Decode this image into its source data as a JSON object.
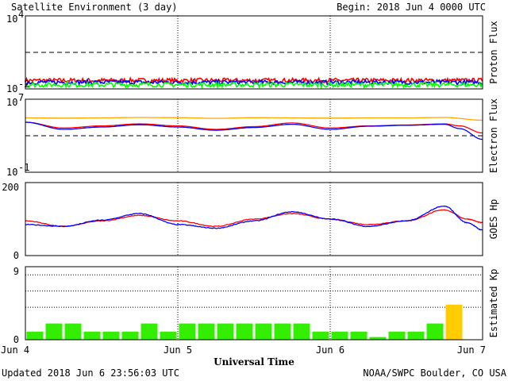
{
  "header": {
    "title": "Satellite Environment (3 day)",
    "begin": "Begin:  2018 Jun 4 0000 UTC"
  },
  "footer": {
    "updated": "Updated 2018 Jun  6 23:56:03 UTC",
    "credit": "NOAA/SWPC Boulder, CO USA",
    "xlabel": "Universal Time"
  },
  "x_ticks": [
    "Jun 4",
    "Jun 5",
    "Jun 6",
    "Jun 7"
  ],
  "chart_data": [
    {
      "type": "line",
      "id": "proton",
      "ylabel": "Proton Flux",
      "yscale": "log",
      "ylim": [
        0.01,
        10000
      ],
      "ytick_labels": [
        {
          "base": "10",
          "exp": "4"
        },
        {
          "base": "10",
          "exp": "-2"
        }
      ],
      "threshold": 10,
      "x_days": [
        0,
        3
      ],
      "series": [
        {
          "color": "#ff0000",
          "base": 0.05,
          "noise": 0.35
        },
        {
          "color": "#0000ff",
          "base": 0.035,
          "noise": 0.35
        },
        {
          "color": "#00ff00",
          "base": 0.022,
          "noise": 0.4
        }
      ]
    },
    {
      "type": "line",
      "id": "electron",
      "ylabel": "Electron Flux",
      "yscale": "log",
      "ylim": [
        0.1,
        10000000
      ],
      "ytick_labels": [
        {
          "base": "10",
          "exp": "7"
        },
        {
          "base": "10",
          "exp": "-1"
        }
      ],
      "threshold": 1000,
      "series": [
        {
          "color": "#ffa500",
          "x": [
            0,
            0.25,
            0.5,
            0.75,
            1.0,
            1.25,
            1.5,
            1.75,
            2.0,
            2.25,
            2.5,
            2.75,
            3.0
          ],
          "y": [
            90000,
            85000,
            90000,
            100000,
            95000,
            80000,
            95000,
            90000,
            85000,
            90000,
            90000,
            100000,
            50000
          ]
        },
        {
          "color": "#ff0000",
          "x": [
            0,
            0.25,
            0.5,
            0.75,
            1.0,
            1.25,
            1.5,
            1.75,
            2.0,
            2.25,
            2.5,
            2.75,
            2.85,
            3.0
          ],
          "y": [
            30000,
            7000,
            12000,
            20000,
            12000,
            5000,
            10000,
            25000,
            7000,
            12000,
            15000,
            20000,
            12000,
            2000
          ]
        },
        {
          "color": "#0000ff",
          "x": [
            0,
            0.25,
            0.5,
            0.75,
            1.0,
            1.25,
            1.5,
            1.75,
            2.0,
            2.25,
            2.5,
            2.75,
            2.85,
            3.0
          ],
          "y": [
            30000,
            5000,
            9000,
            16000,
            9000,
            4000,
            8000,
            18000,
            5000,
            11000,
            14000,
            18000,
            6000,
            400
          ]
        }
      ]
    },
    {
      "type": "line",
      "id": "hp",
      "ylabel": "GOES Hp",
      "yscale": "linear",
      "ylim": [
        0,
        200
      ],
      "ytick_labels": [
        "200",
        "0"
      ],
      "series": [
        {
          "color": "#ff0000",
          "x": [
            0,
            0.25,
            0.5,
            0.75,
            1.0,
            1.25,
            1.5,
            1.75,
            2.0,
            2.25,
            2.5,
            2.75,
            2.9,
            3.0
          ],
          "y": [
            95,
            80,
            95,
            110,
            95,
            80,
            100,
            115,
            100,
            85,
            95,
            125,
            100,
            90
          ]
        },
        {
          "color": "#0000ff",
          "x": [
            0,
            0.25,
            0.5,
            0.75,
            1.0,
            1.25,
            1.5,
            1.75,
            2.0,
            2.25,
            2.5,
            2.75,
            2.9,
            3.0
          ],
          "y": [
            85,
            80,
            97,
            115,
            85,
            75,
            95,
            120,
            100,
            80,
            95,
            135,
            90,
            70
          ]
        }
      ]
    },
    {
      "type": "bar",
      "id": "kp",
      "ylabel": "Estimated Kp",
      "ylim": [
        0,
        9
      ],
      "ytick_labels": [
        "9",
        "0"
      ],
      "grid_y": [
        4,
        6,
        8
      ],
      "values": [
        1.0,
        2.0,
        2.0,
        1.0,
        1.0,
        1.0,
        2.0,
        1.0,
        2.0,
        2.0,
        2.0,
        2.0,
        2.0,
        2.0,
        2.0,
        1.0,
        1.0,
        1.0,
        0.33,
        1.0,
        1.0,
        2.0,
        4.33
      ],
      "colors": [
        "#33ee00",
        "#33ee00",
        "#33ee00",
        "#33ee00",
        "#33ee00",
        "#33ee00",
        "#33ee00",
        "#33ee00",
        "#33ee00",
        "#33ee00",
        "#33ee00",
        "#33ee00",
        "#33ee00",
        "#33ee00",
        "#33ee00",
        "#33ee00",
        "#33ee00",
        "#33ee00",
        "#33ee00",
        "#33ee00",
        "#33ee00",
        "#33ee00",
        "#ffcc00"
      ]
    }
  ]
}
